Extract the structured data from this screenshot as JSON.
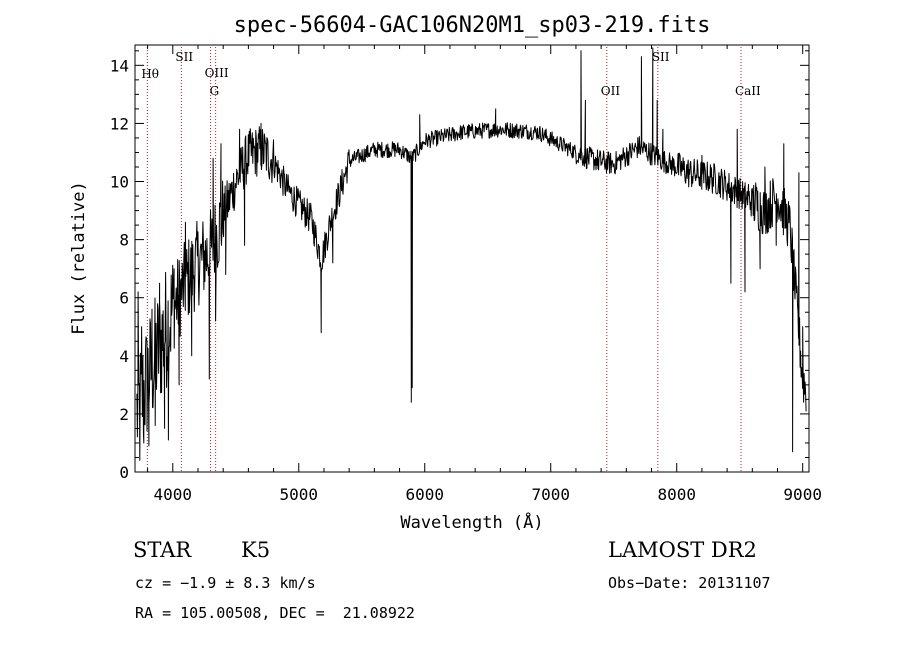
{
  "chart_data": {
    "type": "line",
    "title": "spec-56604-GAC106N20M1_sp03-219.fits",
    "xlabel": "Wavelength (Å)",
    "ylabel": "Flux (relative)",
    "xlim": [
      3700,
      9050
    ],
    "ylim": [
      0,
      14.7
    ],
    "x_ticks": [
      4000,
      5000,
      6000,
      7000,
      8000,
      9000
    ],
    "y_ticks": [
      0,
      2,
      4,
      6,
      8,
      10,
      12,
      14
    ],
    "line_color": "#000000",
    "marker_color": "#b22222",
    "spectral_lines": [
      {
        "label": "Hθ",
        "x": 3798
      },
      {
        "label": "SII",
        "x": 4068
      },
      {
        "label": "OIII",
        "x": 4300
      },
      {
        "label": "G",
        "x": 4340
      },
      {
        "label": "OII",
        "x": 7445
      },
      {
        "label": "SII",
        "x": 7850
      },
      {
        "label": "CaII",
        "x": 8510
      }
    ],
    "continuum": [
      [
        3700,
        1.8
      ],
      [
        3800,
        3.2
      ],
      [
        3900,
        4.4
      ],
      [
        4000,
        5.6
      ],
      [
        4100,
        6.5
      ],
      [
        4200,
        7.2
      ],
      [
        4300,
        7.6
      ],
      [
        4400,
        8.8
      ],
      [
        4500,
        10.0
      ],
      [
        4600,
        10.9
      ],
      [
        4700,
        11.1
      ],
      [
        4800,
        10.7
      ],
      [
        4900,
        9.8
      ],
      [
        5000,
        9.2
      ],
      [
        5100,
        8.7
      ],
      [
        5180,
        7.3
      ],
      [
        5250,
        8.6
      ],
      [
        5400,
        10.7
      ],
      [
        5600,
        11.1
      ],
      [
        5800,
        11.1
      ],
      [
        5900,
        10.8
      ],
      [
        6000,
        11.4
      ],
      [
        6300,
        11.7
      ],
      [
        6600,
        11.8
      ],
      [
        6900,
        11.7
      ],
      [
        7200,
        11.0
      ],
      [
        7300,
        10.8
      ],
      [
        7500,
        10.6
      ],
      [
        7700,
        11.2
      ],
      [
        7900,
        10.7
      ],
      [
        8100,
        10.3
      ],
      [
        8300,
        10.1
      ],
      [
        8500,
        9.6
      ],
      [
        8700,
        9.0
      ],
      [
        8800,
        9.5
      ],
      [
        8900,
        8.4
      ],
      [
        8950,
        5.8
      ],
      [
        9000,
        3.2
      ],
      [
        9050,
        2.5
      ]
    ],
    "features": [
      {
        "x": 3725,
        "y": 6.2
      },
      {
        "x": 3738,
        "y": 0.4
      },
      {
        "x": 3752,
        "y": 5.0
      },
      {
        "x": 3770,
        "y": 1.0
      },
      {
        "x": 3795,
        "y": 4.5
      },
      {
        "x": 3810,
        "y": 0.9
      },
      {
        "x": 3835,
        "y": 5.6
      },
      {
        "x": 3860,
        "y": 1.6
      },
      {
        "x": 3895,
        "y": 6.5
      },
      {
        "x": 3935,
        "y": 1.5
      },
      {
        "x": 3965,
        "y": 1.1
      },
      {
        "x": 4010,
        "y": 7.0
      },
      {
        "x": 4050,
        "y": 3.0
      },
      {
        "x": 4100,
        "y": 8.6
      },
      {
        "x": 4150,
        "y": 4.0
      },
      {
        "x": 4200,
        "y": 8.2
      },
      {
        "x": 4290,
        "y": 3.2
      },
      {
        "x": 4320,
        "y": 10.8
      },
      {
        "x": 4340,
        "y": 5.2
      },
      {
        "x": 4383,
        "y": 11.3
      },
      {
        "x": 4420,
        "y": 6.8
      },
      {
        "x": 4530,
        "y": 11.8
      },
      {
        "x": 4570,
        "y": 7.8
      },
      {
        "x": 4700,
        "y": 12.0
      },
      {
        "x": 5178,
        "y": 4.8
      },
      {
        "x": 5270,
        "y": 7.2
      },
      {
        "x": 5893,
        "y": 2.4
      },
      {
        "x": 5900,
        "y": 2.9
      },
      {
        "x": 5960,
        "y": 12.3
      },
      {
        "x": 6563,
        "y": 12.5
      },
      {
        "x": 7240,
        "y": 14.5
      },
      {
        "x": 7275,
        "y": 12.8
      },
      {
        "x": 7380,
        "y": 10.4
      },
      {
        "x": 7720,
        "y": 14.3
      },
      {
        "x": 7810,
        "y": 14.6
      },
      {
        "x": 7845,
        "y": 12.8
      },
      {
        "x": 7890,
        "y": 11.8
      },
      {
        "x": 8200,
        "y": 10.9
      },
      {
        "x": 8430,
        "y": 6.5
      },
      {
        "x": 8480,
        "y": 11.8
      },
      {
        "x": 8542,
        "y": 6.2
      },
      {
        "x": 8570,
        "y": 9.9
      },
      {
        "x": 8662,
        "y": 7.0
      },
      {
        "x": 8700,
        "y": 10.5
      },
      {
        "x": 8790,
        "y": 7.8
      },
      {
        "x": 8850,
        "y": 11.3
      },
      {
        "x": 8920,
        "y": 0.7
      },
      {
        "x": 8970,
        "y": 10.3
      },
      {
        "x": 9000,
        "y": 5.0
      }
    ]
  },
  "info": {
    "class": "STAR",
    "subclass": "K5",
    "survey": "LAMOST DR2",
    "cz": "cz = −1.9 ± 8.3 km/s",
    "obs_date": "Obs−Date: 20131107",
    "coords": "RA = 105.00508, DEC =  21.08922"
  }
}
